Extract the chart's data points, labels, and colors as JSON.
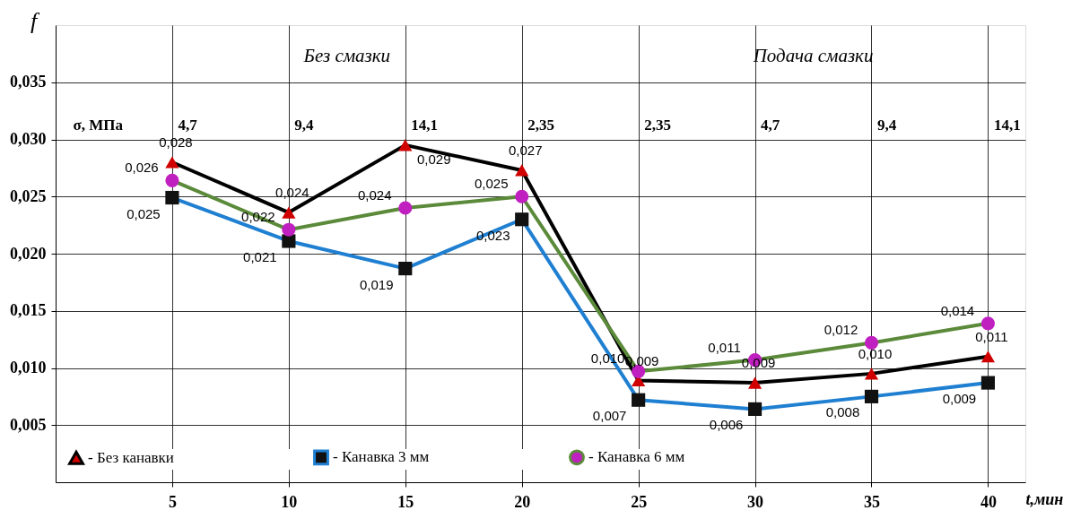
{
  "chart_data": {
    "type": "line",
    "xlabel": "t,мин",
    "ylabel": "f",
    "x": [
      5,
      10,
      15,
      20,
      25,
      30,
      35,
      40
    ],
    "series": [
      {
        "name": "- Без канавки",
        "color": "#000000",
        "marker": "triangle",
        "values": [
          0.028,
          0.0236,
          0.0295,
          0.0273,
          0.0089,
          0.0087,
          0.0095,
          0.011
        ],
        "value_labels": [
          "0,028",
          "0,024",
          "0,029",
          "0,027",
          "0,009",
          "0,009",
          "0,010",
          "0,011"
        ]
      },
      {
        "name": "- Канавка 3 мм",
        "color": "#1f7fd1",
        "marker": "square",
        "values": [
          0.0249,
          0.0211,
          0.0187,
          0.023,
          0.0072,
          0.0064,
          0.0075,
          0.0087
        ],
        "value_labels": [
          "0,025",
          "0,021",
          "0,019",
          "0,023",
          "0,007",
          "0,006",
          "0,008",
          "0,009"
        ]
      },
      {
        "name": "- Канавка 6 мм",
        "color": "#5b8a3a",
        "marker": "circle",
        "values": [
          0.0264,
          0.0221,
          0.024,
          0.025,
          0.0097,
          0.0107,
          0.0122,
          0.0139
        ],
        "value_labels": [
          "0,026",
          "0,022",
          "0,024",
          "0,025",
          "0,010",
          "0,011",
          "0,012",
          "0,014"
        ]
      }
    ],
    "xlim": [
      0,
      41.6
    ],
    "xticks": [
      5,
      10,
      15,
      20,
      25,
      30,
      35,
      40
    ],
    "ylim": [
      0,
      0.04
    ],
    "yticks": [
      {
        "value": 0.005,
        "label": "0,005"
      },
      {
        "value": 0.01,
        "label": "0,010"
      },
      {
        "value": 0.015,
        "label": "0,015"
      },
      {
        "value": 0.02,
        "label": "0,020"
      },
      {
        "value": 0.025,
        "label": "0,025"
      },
      {
        "value": 0.03,
        "label": "0,030"
      },
      {
        "value": 0.035,
        "label": "0,035"
      }
    ],
    "grid": true,
    "legend": "bottom",
    "annotations": [
      "Без смазки",
      "Подача смазки",
      "σ, МПа",
      "4,7",
      "9,4",
      "14,1",
      "2,35",
      "2,35",
      "4,7",
      "9,4",
      "14,1"
    ]
  }
}
